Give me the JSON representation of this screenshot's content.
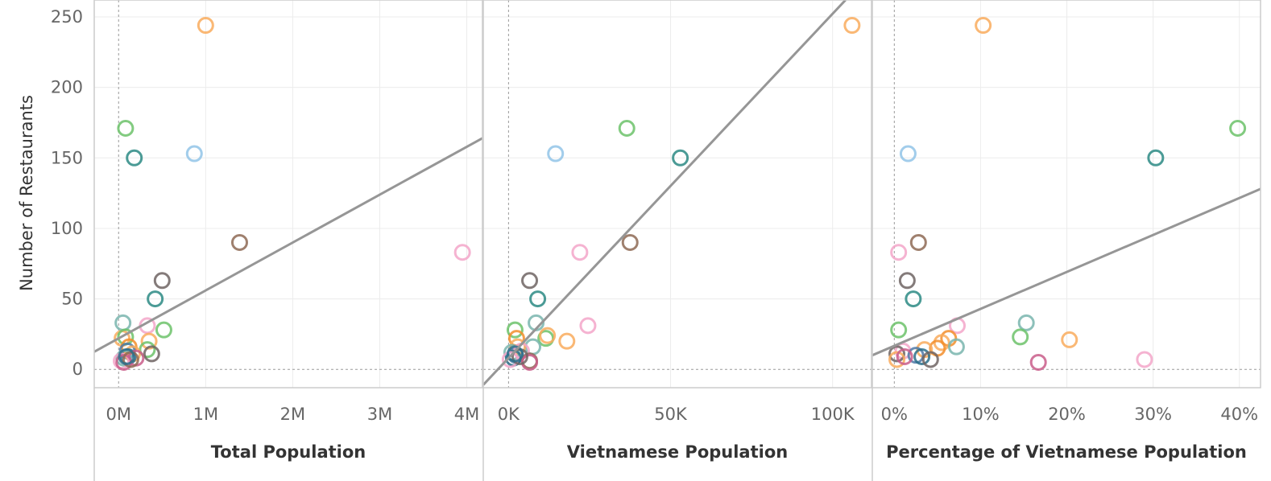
{
  "chart_data": {
    "type": "scatter",
    "ylabel": "Number of Restaurants",
    "ylim": [
      -13,
      262
    ],
    "yticks": [
      0,
      50,
      100,
      150,
      200,
      250
    ],
    "grid": true,
    "panels": [
      {
        "xlabel": "Total Population",
        "xlim": [
          -280000,
          4180000
        ],
        "xticks": [
          0,
          1000000,
          2000000,
          3000000,
          4000000
        ],
        "xtick_labels": [
          "0M",
          "1M",
          "2M",
          "3M",
          "4M"
        ],
        "trend": [
          [
            -280000,
            12.5
          ],
          [
            4180000,
            164
          ]
        ],
        "points": [
          {
            "x": 1000000,
            "y": 244,
            "c": "#f9ac5d"
          },
          {
            "x": 80000,
            "y": 171,
            "c": "#6cc26a"
          },
          {
            "x": 180000,
            "y": 150,
            "c": "#2b8a84"
          },
          {
            "x": 870000,
            "y": 153,
            "c": "#92c4e8"
          },
          {
            "x": 1390000,
            "y": 90,
            "c": "#8e6a55"
          },
          {
            "x": 3950000,
            "y": 83,
            "c": "#f3a6c9"
          },
          {
            "x": 500000,
            "y": 63,
            "c": "#6e6463"
          },
          {
            "x": 420000,
            "y": 50,
            "c": "#2b8a84"
          },
          {
            "x": 50000,
            "y": 33,
            "c": "#79b5ae"
          },
          {
            "x": 330000,
            "y": 31,
            "c": "#f3a6c9"
          },
          {
            "x": 520000,
            "y": 28,
            "c": "#6cc26a"
          },
          {
            "x": 40000,
            "y": 22,
            "c": "#f9ac5d"
          },
          {
            "x": 80000,
            "y": 23,
            "c": "#6cc26a"
          },
          {
            "x": 350000,
            "y": 20,
            "c": "#f9ac5d"
          },
          {
            "x": 120000,
            "y": 16,
            "c": "#f28e2b"
          },
          {
            "x": 330000,
            "y": 14,
            "c": "#6cc26a"
          },
          {
            "x": 380000,
            "y": 11,
            "c": "#6e6463"
          },
          {
            "x": 100000,
            "y": 13,
            "c": "#4e79a7"
          },
          {
            "x": 160000,
            "y": 11,
            "c": "#f9ac5d"
          },
          {
            "x": 110000,
            "y": 9,
            "c": "#2b6f8a"
          },
          {
            "x": 60000,
            "y": 8,
            "c": "#79b5ae"
          },
          {
            "x": 200000,
            "y": 8,
            "c": "#c95d8a"
          },
          {
            "x": 30000,
            "y": 6,
            "c": "#f3a6c9"
          },
          {
            "x": 60000,
            "y": 5,
            "c": "#c95d8a"
          },
          {
            "x": 140000,
            "y": 7,
            "c": "#8e6a55"
          },
          {
            "x": 90000,
            "y": 9,
            "c": "#2b6f8a"
          }
        ]
      },
      {
        "xlabel": "Vietnamese Population",
        "xlim": [
          -7800,
          112000
        ],
        "xticks": [
          0,
          50000,
          100000
        ],
        "xtick_labels": [
          "0K",
          "50K",
          "100K"
        ],
        "trend": [
          [
            -7800,
            -11
          ],
          [
            104000,
            262
          ]
        ],
        "points": [
          {
            "x": 106000,
            "y": 244,
            "c": "#f9ac5d"
          },
          {
            "x": 36500,
            "y": 171,
            "c": "#6cc26a"
          },
          {
            "x": 53000,
            "y": 150,
            "c": "#2b8a84"
          },
          {
            "x": 14500,
            "y": 153,
            "c": "#92c4e8"
          },
          {
            "x": 37500,
            "y": 90,
            "c": "#8e6a55"
          },
          {
            "x": 22000,
            "y": 83,
            "c": "#f3a6c9"
          },
          {
            "x": 6500,
            "y": 63,
            "c": "#6e6463"
          },
          {
            "x": 9000,
            "y": 50,
            "c": "#2b8a84"
          },
          {
            "x": 8500,
            "y": 33,
            "c": "#79b5ae"
          },
          {
            "x": 24500,
            "y": 31,
            "c": "#f3a6c9"
          },
          {
            "x": 2000,
            "y": 28,
            "c": "#6cc26a"
          },
          {
            "x": 11500,
            "y": 22,
            "c": "#6cc26a"
          },
          {
            "x": 12000,
            "y": 24,
            "c": "#f9ac5d"
          },
          {
            "x": 2500,
            "y": 22,
            "c": "#f28e2b"
          },
          {
            "x": 18000,
            "y": 20,
            "c": "#f9ac5d"
          },
          {
            "x": 7500,
            "y": 16,
            "c": "#79b5ae"
          },
          {
            "x": 2800,
            "y": 16,
            "c": "#f9ac5d"
          },
          {
            "x": 1000,
            "y": 12,
            "c": "#79b5ae"
          },
          {
            "x": 2200,
            "y": 10,
            "c": "#4e79a7"
          },
          {
            "x": 4000,
            "y": 13,
            "c": "#f3a6c9"
          },
          {
            "x": 1500,
            "y": 8,
            "c": "#2b6f8a"
          },
          {
            "x": 500,
            "y": 7,
            "c": "#f3a6c9"
          },
          {
            "x": 6500,
            "y": 6,
            "c": "#8e6a55"
          },
          {
            "x": 6500,
            "y": 5,
            "c": "#c95d8a"
          },
          {
            "x": 3500,
            "y": 9,
            "c": "#6e6463"
          },
          {
            "x": 2000,
            "y": 11,
            "c": "#2b6f8a"
          }
        ]
      },
      {
        "xlabel": "Percentage of Vietnamese Population",
        "xlim": [
          -0.0255,
          0.4245
        ],
        "xticks": [
          0,
          0.1,
          0.2,
          0.3,
          0.4
        ],
        "xtick_labels": [
          "0%",
          "10%",
          "20%",
          "30%",
          "40%"
        ],
        "trend": [
          [
            -0.0255,
            10
          ],
          [
            0.4245,
            128
          ]
        ],
        "points": [
          {
            "x": 0.103,
            "y": 244,
            "c": "#f9ac5d"
          },
          {
            "x": 0.398,
            "y": 171,
            "c": "#6cc26a"
          },
          {
            "x": 0.303,
            "y": 150,
            "c": "#2b8a84"
          },
          {
            "x": 0.016,
            "y": 153,
            "c": "#92c4e8"
          },
          {
            "x": 0.028,
            "y": 90,
            "c": "#8e6a55"
          },
          {
            "x": 0.005,
            "y": 83,
            "c": "#f3a6c9"
          },
          {
            "x": 0.015,
            "y": 63,
            "c": "#6e6463"
          },
          {
            "x": 0.022,
            "y": 50,
            "c": "#2b8a84"
          },
          {
            "x": 0.153,
            "y": 33,
            "c": "#79b5ae"
          },
          {
            "x": 0.073,
            "y": 31,
            "c": "#f3a6c9"
          },
          {
            "x": 0.005,
            "y": 28,
            "c": "#6cc26a"
          },
          {
            "x": 0.146,
            "y": 23,
            "c": "#6cc26a"
          },
          {
            "x": 0.203,
            "y": 21,
            "c": "#f9ac5d"
          },
          {
            "x": 0.063,
            "y": 22,
            "c": "#f28e2b"
          },
          {
            "x": 0.055,
            "y": 19,
            "c": "#f9ac5d"
          },
          {
            "x": 0.072,
            "y": 16,
            "c": "#79b5ae"
          },
          {
            "x": 0.05,
            "y": 15,
            "c": "#f28e2b"
          },
          {
            "x": 0.035,
            "y": 14,
            "c": "#f9ac5d"
          },
          {
            "x": 0.01,
            "y": 13,
            "c": "#f3a6c9"
          },
          {
            "x": 0.003,
            "y": 11,
            "c": "#6e6463"
          },
          {
            "x": 0.025,
            "y": 10,
            "c": "#4e79a7"
          },
          {
            "x": 0.032,
            "y": 9,
            "c": "#2b6f8a"
          },
          {
            "x": 0.042,
            "y": 7,
            "c": "#6e6463"
          },
          {
            "x": 0.003,
            "y": 7,
            "c": "#f9ac5d"
          },
          {
            "x": 0.012,
            "y": 9,
            "c": "#c95d8a"
          },
          {
            "x": 0.167,
            "y": 5,
            "c": "#c95d8a"
          },
          {
            "x": 0.29,
            "y": 7,
            "c": "#f3a6c9"
          }
        ]
      }
    ]
  }
}
